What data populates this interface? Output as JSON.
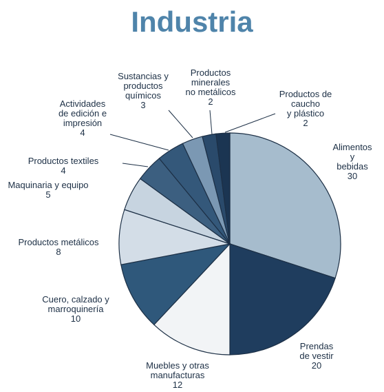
{
  "chart_data": {
    "type": "pie",
    "title": "Industria",
    "categories": [
      "Alimentos y\nbebidas",
      "Prendas\nde vestir",
      "Muebles y otras\nmanufacturas",
      "Cuero, calzado y\nmarroquinería",
      "Productos metálicos",
      "Maquinaria y equipo",
      "Productos textiles",
      "Actividades\nde edición e\nimpresión",
      "Sustancias y\nproductos\nquímicos",
      "Productos\nminerales\nno metálicos",
      "Productos de caucho\ny plástico"
    ],
    "values": [
      30,
      20,
      12,
      10,
      8,
      5,
      4,
      4,
      3,
      2,
      2
    ],
    "colors": [
      "#a6bccd",
      "#1f3d5e",
      "#f2f4f6",
      "#2f587b",
      "#d3dde7",
      "#c7d4e0",
      "#3c5f80",
      "#34587a",
      "#7b98b3",
      "#2a4a6b",
      "#1b3552"
    ]
  }
}
